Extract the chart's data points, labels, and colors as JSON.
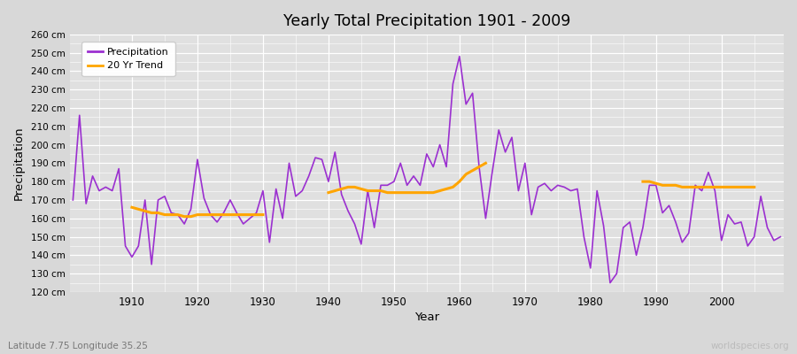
{
  "title": "Yearly Total Precipitation 1901 - 2009",
  "xlabel": "Year",
  "ylabel": "Precipitation",
  "subtitle": "Latitude 7.75 Longitude 35.25",
  "watermark": "worldspecies.org",
  "precip_color": "#9b30d0",
  "trend_color": "#FFA500",
  "bg_color": "#d8d8d8",
  "plot_bg_color": "#e0e0e0",
  "ylim": [
    120,
    260
  ],
  "ytick_step": 10,
  "xticks": [
    1910,
    1920,
    1930,
    1940,
    1950,
    1960,
    1970,
    1980,
    1990,
    2000
  ],
  "years": [
    1901,
    1902,
    1903,
    1904,
    1905,
    1906,
    1907,
    1908,
    1909,
    1910,
    1911,
    1912,
    1913,
    1914,
    1915,
    1916,
    1917,
    1918,
    1919,
    1920,
    1921,
    1922,
    1923,
    1924,
    1925,
    1926,
    1927,
    1928,
    1929,
    1930,
    1931,
    1932,
    1933,
    1934,
    1935,
    1936,
    1937,
    1938,
    1939,
    1940,
    1941,
    1942,
    1943,
    1944,
    1945,
    1946,
    1947,
    1948,
    1949,
    1950,
    1951,
    1952,
    1953,
    1954,
    1955,
    1956,
    1957,
    1958,
    1959,
    1960,
    1961,
    1962,
    1963,
    1964,
    1965,
    1966,
    1967,
    1968,
    1969,
    1970,
    1971,
    1972,
    1973,
    1974,
    1975,
    1976,
    1977,
    1978,
    1979,
    1980,
    1981,
    1982,
    1983,
    1984,
    1985,
    1986,
    1987,
    1988,
    1989,
    1990,
    1991,
    1992,
    1993,
    1994,
    1995,
    1996,
    1997,
    1998,
    1999,
    2000,
    2001,
    2002,
    2003,
    2004,
    2005,
    2006,
    2007,
    2008,
    2009
  ],
  "precip": [
    170,
    216,
    168,
    183,
    175,
    177,
    175,
    187,
    145,
    139,
    145,
    170,
    135,
    170,
    172,
    163,
    162,
    157,
    165,
    192,
    171,
    162,
    158,
    163,
    170,
    163,
    157,
    160,
    163,
    175,
    147,
    176,
    160,
    190,
    172,
    175,
    183,
    193,
    192,
    180,
    196,
    173,
    164,
    157,
    146,
    175,
    155,
    178,
    178,
    180,
    190,
    178,
    183,
    178,
    195,
    188,
    200,
    188,
    233,
    248,
    222,
    228,
    188,
    160,
    185,
    208,
    196,
    204,
    175,
    190,
    162,
    177,
    179,
    175,
    178,
    177,
    175,
    176,
    150,
    133,
    175,
    156,
    125,
    130,
    155,
    158,
    140,
    155,
    178,
    178,
    163,
    167,
    158,
    147,
    152,
    178,
    175,
    185,
    175,
    148,
    162,
    157,
    158,
    145,
    150,
    172,
    155,
    148,
    150
  ],
  "trend_segments": [
    {
      "years": [
        1910,
        1911,
        1912,
        1913,
        1914,
        1915,
        1916,
        1917,
        1918,
        1919,
        1920,
        1921,
        1922,
        1923,
        1924,
        1925,
        1926,
        1927,
        1928,
        1929,
        1930
      ],
      "values": [
        166,
        165,
        164,
        163,
        163,
        162,
        162,
        162,
        161,
        161,
        162,
        162,
        162,
        162,
        162,
        162,
        162,
        162,
        162,
        162,
        162
      ]
    },
    {
      "years": [
        1940,
        1941,
        1942,
        1943,
        1944,
        1945,
        1946,
        1947,
        1948,
        1949,
        1950,
        1951,
        1952,
        1953,
        1954,
        1955,
        1956,
        1957,
        1958,
        1959,
        1960,
        1961,
        1962,
        1963,
        1964
      ],
      "values": [
        174,
        175,
        176,
        177,
        177,
        176,
        175,
        175,
        175,
        174,
        174,
        174,
        174,
        174,
        174,
        174,
        174,
        175,
        176,
        177,
        180,
        184,
        186,
        188,
        190
      ]
    },
    {
      "years": [
        1988,
        1989,
        1990,
        1991,
        1992,
        1993,
        1994,
        1995,
        1996,
        1997,
        1998,
        1999,
        2000,
        2001,
        2002,
        2003,
        2004,
        2005
      ],
      "values": [
        180,
        180,
        179,
        178,
        178,
        178,
        177,
        177,
        177,
        177,
        177,
        177,
        177,
        177,
        177,
        177,
        177,
        177
      ]
    }
  ]
}
